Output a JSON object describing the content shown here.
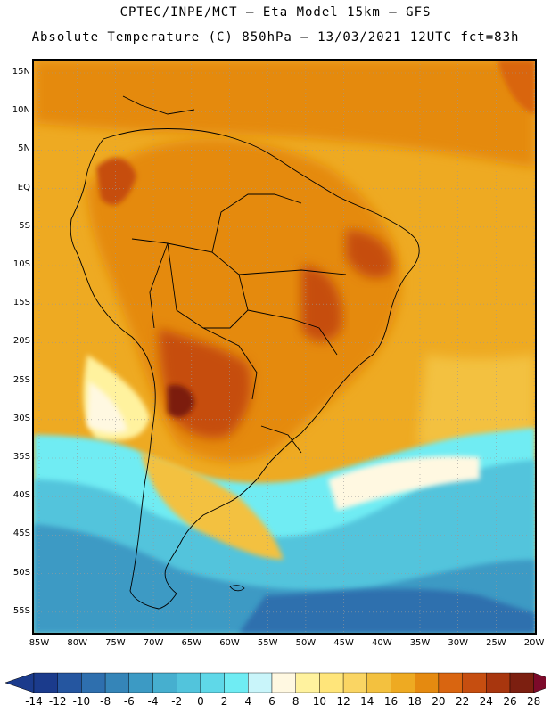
{
  "header": {
    "line1": "CPTEC/INPE/MCT –  Eta Model 15km – GFS",
    "line2": "Absolute Temperature (C) 850hPa – 13/03/2021 12UTC fct=83h"
  },
  "map": {
    "lat_labels": [
      "15N",
      "10N",
      "5N",
      "EQ",
      "5S",
      "10S",
      "15S",
      "20S",
      "25S",
      "30S",
      "35S",
      "40S",
      "45S",
      "50S",
      "55S"
    ],
    "lon_labels": [
      "85W",
      "80W",
      "75W",
      "70W",
      "65W",
      "60W",
      "55W",
      "50W",
      "45W",
      "40W",
      "35W",
      "30W",
      "25W",
      "20W"
    ],
    "gridlines": true
  },
  "colorbar": {
    "ticks": [
      "-14",
      "-12",
      "-10",
      "-8",
      "-6",
      "-4",
      "-2",
      "0",
      "2",
      "4",
      "6",
      "8",
      "10",
      "12",
      "14",
      "16",
      "18",
      "20",
      "22",
      "24",
      "26",
      "28"
    ],
    "colors": [
      "#1b3b8c",
      "#2556a0",
      "#2e6fae",
      "#3585b8",
      "#3c9ac4",
      "#46afcf",
      "#52c4dc",
      "#5fd8e8",
      "#6fecf3",
      "#c9f5fa",
      "#fff8e1",
      "#fff29e",
      "#ffe57a",
      "#fad563",
      "#f3c13f",
      "#eeaa22",
      "#e58a10",
      "#d96510",
      "#c64e10",
      "#a8360e",
      "#7c1f10"
    ]
  }
}
